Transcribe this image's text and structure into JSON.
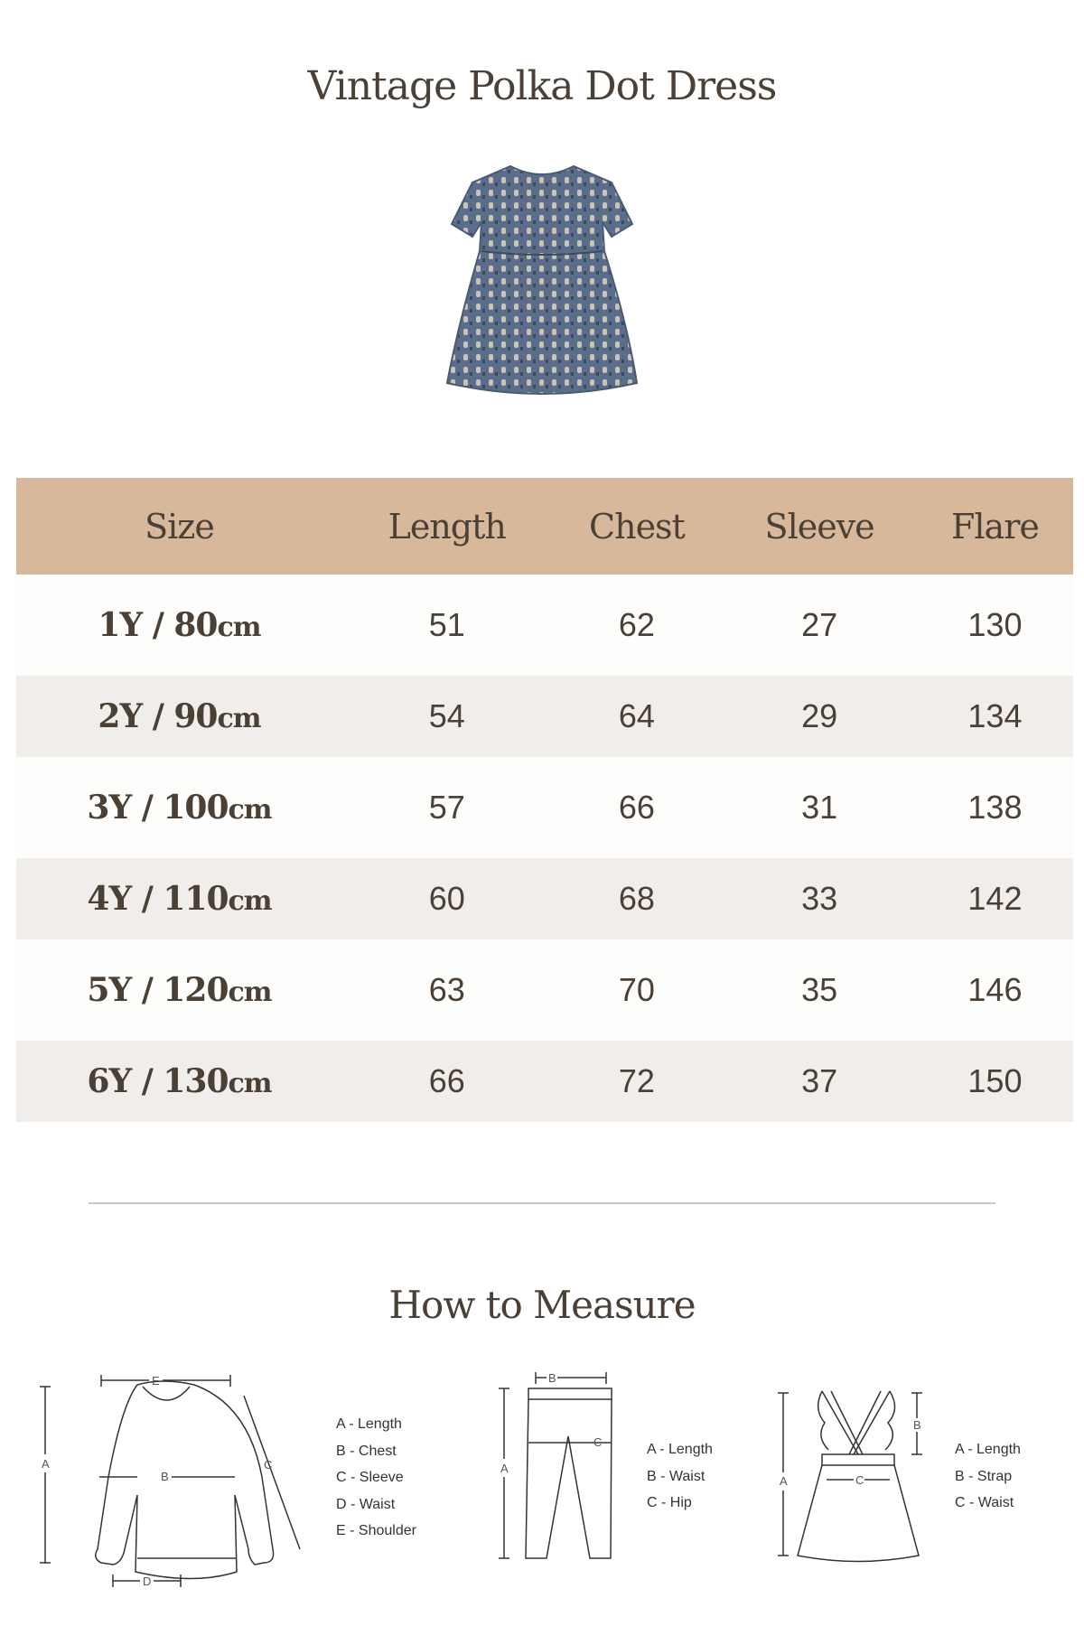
{
  "title": "Vintage Polka Dot Dress",
  "product_image": {
    "alt": "blue patterned short-sleeve dress",
    "color": "#5a6e8c"
  },
  "table": {
    "header_color": "#d7b89b",
    "headers": [
      "Size",
      "Length",
      "Chest",
      "Sleeve",
      "Flare"
    ],
    "rows": [
      {
        "size": "1Y / 80",
        "unit": "cm",
        "length": "51",
        "chest": "62",
        "sleeve": "27",
        "flare": "130"
      },
      {
        "size": "2Y / 90",
        "unit": "cm",
        "length": "54",
        "chest": "64",
        "sleeve": "29",
        "flare": "134"
      },
      {
        "size": "3Y / 100",
        "unit": "cm",
        "length": "57",
        "chest": "66",
        "sleeve": "31",
        "flare": "138"
      },
      {
        "size": "4Y / 110",
        "unit": "cm",
        "length": "60",
        "chest": "68",
        "sleeve": "33",
        "flare": "142"
      },
      {
        "size": "5Y / 120",
        "unit": "cm",
        "length": "63",
        "chest": "70",
        "sleeve": "35",
        "flare": "146"
      },
      {
        "size": "6Y / 130",
        "unit": "cm",
        "length": "66",
        "chest": "72",
        "sleeve": "37",
        "flare": "150"
      }
    ]
  },
  "how_to_measure": {
    "title": "How to Measure",
    "top": {
      "labels": [
        "A",
        "B",
        "C",
        "D",
        "E"
      ],
      "legend": [
        "A - Length",
        "B - Chest",
        "C - Sleeve",
        "D - Waist",
        "E - Shoulder"
      ]
    },
    "pants": {
      "labels": [
        "A",
        "B",
        "C"
      ],
      "legend": [
        "A - Length",
        "B - Waist",
        "C - Hip"
      ]
    },
    "skirt": {
      "labels": [
        "A",
        "B",
        "C"
      ],
      "legend": [
        "A - Length",
        "B - Strap",
        "C - Waist"
      ]
    }
  }
}
